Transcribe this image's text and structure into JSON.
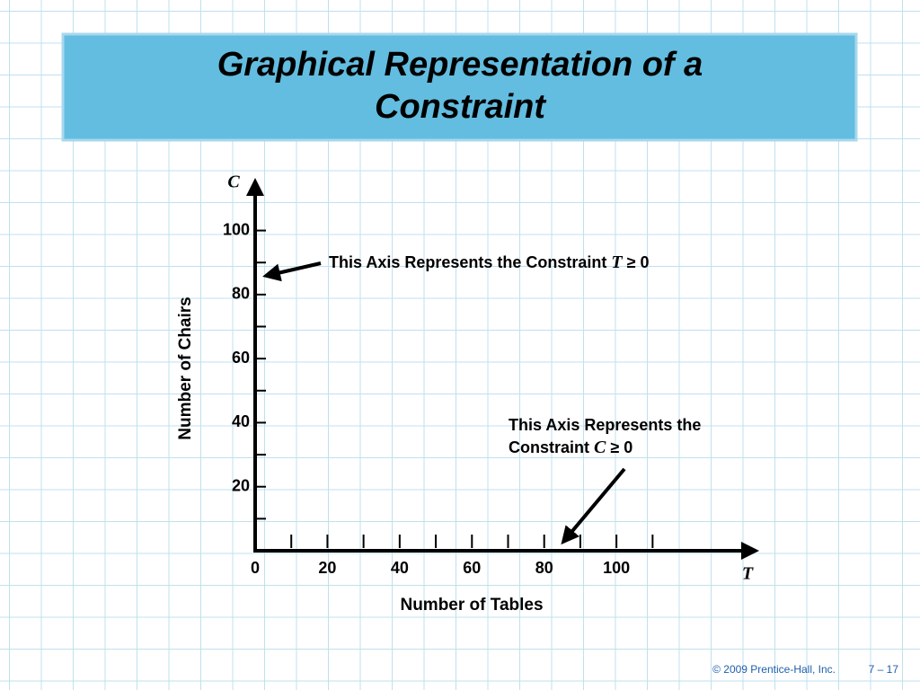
{
  "chart_data": {
    "type": "axes",
    "title": [
      "Graphical Representation of a",
      "Constraint"
    ],
    "xlabel": "Number of Tables",
    "ylabel": "Number of Chairs",
    "x_axis_symbol": "T",
    "y_axis_symbol": "C",
    "xlim": [
      0,
      140
    ],
    "ylim": [
      0,
      117
    ],
    "xticks": [
      0,
      20,
      40,
      60,
      80,
      100
    ],
    "xminor": [
      10,
      20,
      30,
      40,
      50,
      60,
      70,
      80,
      90,
      100,
      110
    ],
    "yticks": [
      20,
      40,
      60,
      80,
      100
    ],
    "yminor": [
      10,
      20,
      30,
      40,
      50,
      60,
      70,
      80,
      90,
      100
    ],
    "annotations": [
      {
        "lines": [
          [
            "This Axis Represents the Constraint ",
            "T",
            " ≥ 0"
          ]
        ]
      },
      {
        "lines": [
          [
            "This Axis Represents the"
          ],
          [
            "Constraint ",
            "C",
            " ≥ 0"
          ]
        ]
      }
    ],
    "footer": [
      "© 2009 Prentice-Hall, Inc.",
      "7 – 17"
    ]
  }
}
